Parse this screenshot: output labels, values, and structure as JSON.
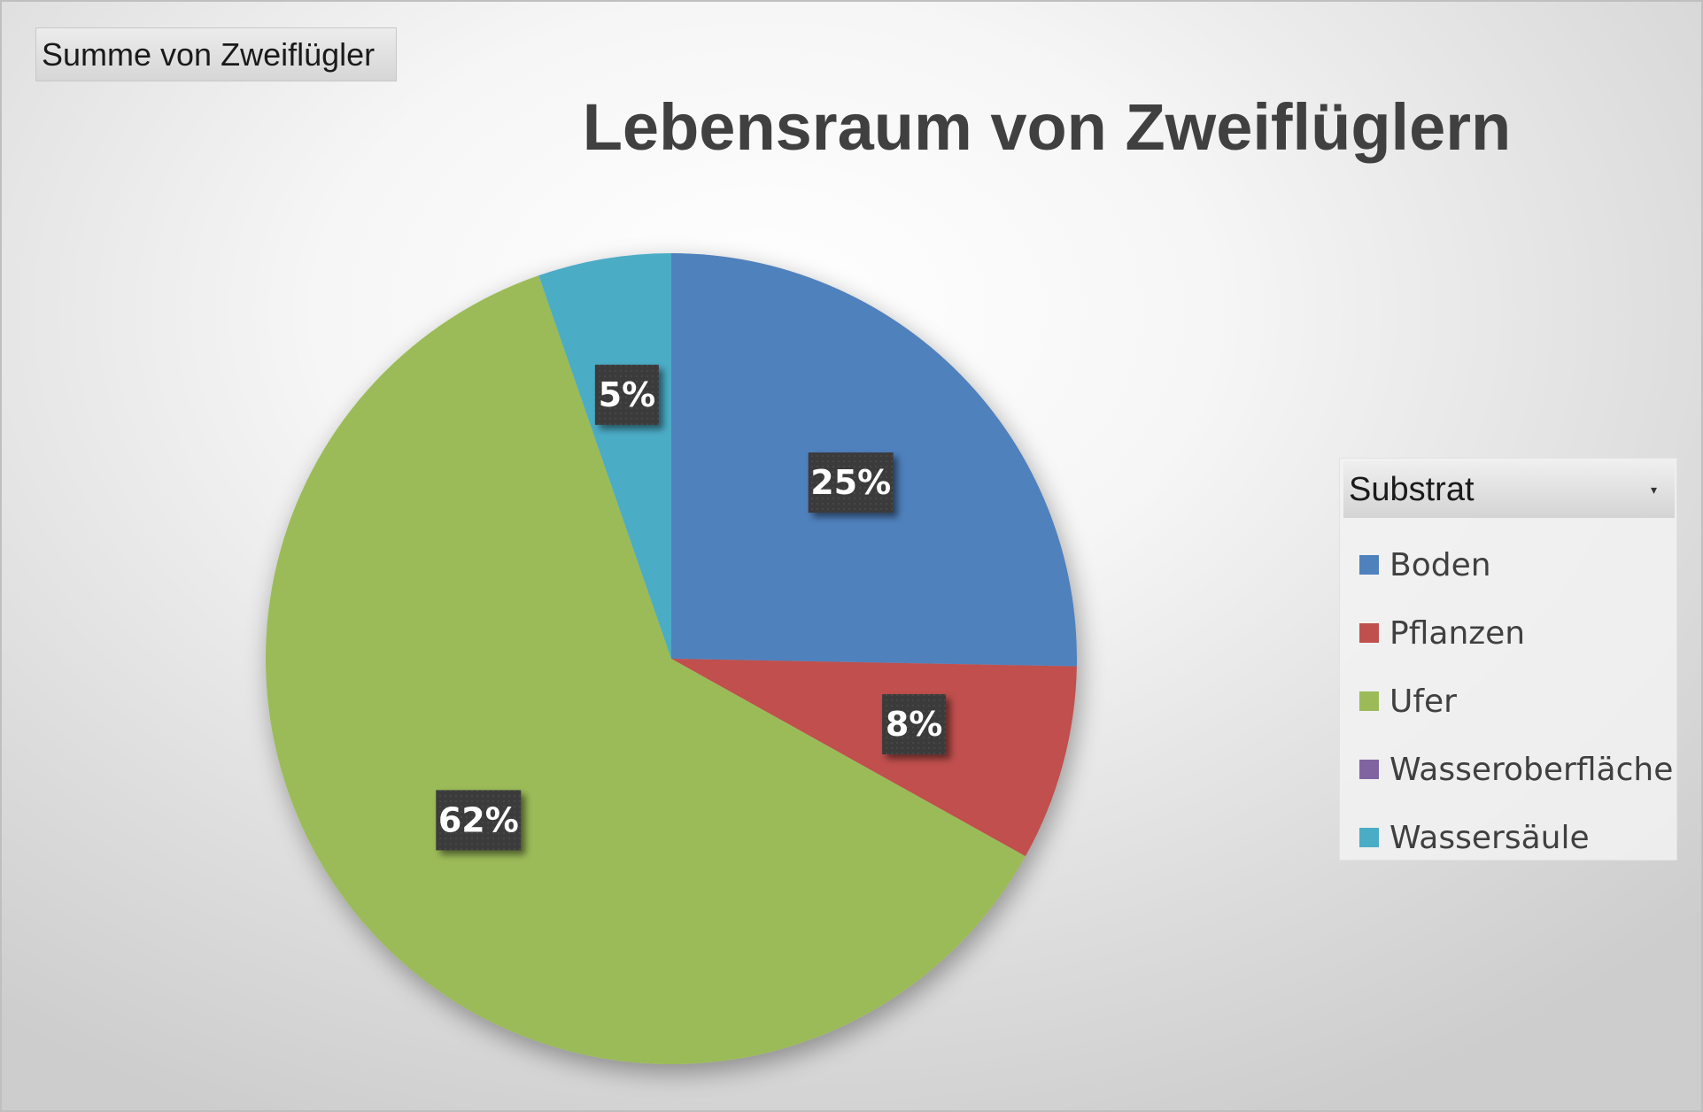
{
  "field_button": {
    "label": "Summe von Zweiflügler"
  },
  "chart_data": {
    "type": "pie",
    "title": "Lebensraum von Zweiflüglern",
    "start_angle_deg": 0,
    "direction": "clockwise",
    "categories": [
      "Boden",
      "Pflanzen",
      "Ufer",
      "Wasseroberfläche",
      "Wassersäule"
    ],
    "values": [
      25.3,
      7.8,
      61.6,
      0,
      5.3
    ],
    "data_labels": [
      "25%",
      "8%",
      "62%",
      "",
      "5%"
    ],
    "colors": [
      "#4F81BD",
      "#C0504D",
      "#9BBB59",
      "#8064A2",
      "#4BACC6"
    ],
    "legend": {
      "title": "Substrat",
      "placement": "right",
      "has_filter_dropdown": true
    }
  }
}
